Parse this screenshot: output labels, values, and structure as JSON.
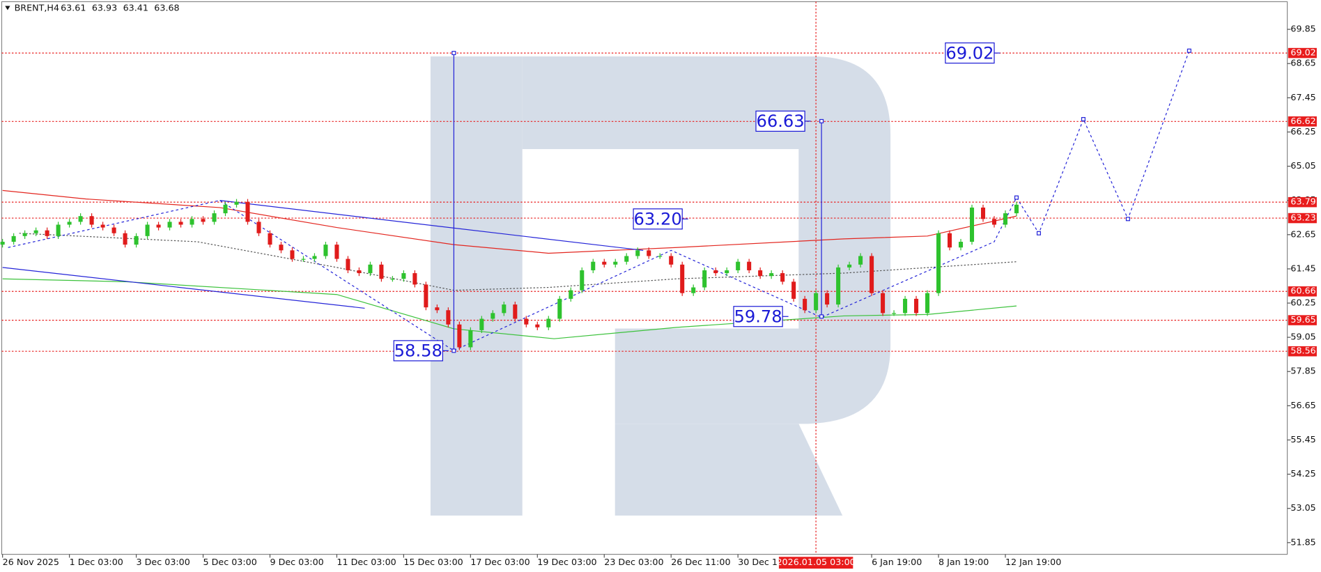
{
  "chart_data": {
    "type": "candlestick",
    "title": "BRENT,H4",
    "quote": [
      63.61,
      63.93,
      63.41,
      63.68
    ],
    "x": [
      0,
      2,
      4,
      6,
      8,
      10,
      12,
      14,
      16,
      18,
      20,
      22,
      24,
      26,
      28,
      30,
      32,
      34,
      36,
      38,
      40,
      42,
      44,
      46,
      48,
      50,
      52,
      54,
      56,
      58,
      60,
      62,
      64,
      66,
      68,
      70,
      72,
      74,
      76,
      78,
      80,
      82,
      84,
      86,
      88,
      90,
      92,
      94,
      96,
      98,
      100,
      102,
      104,
      106,
      108,
      110,
      112,
      114,
      116,
      118,
      120,
      122,
      124,
      126,
      128,
      130,
      132,
      134,
      136,
      138,
      140,
      142,
      144,
      146,
      148,
      150,
      152,
      154,
      156,
      158,
      160,
      162,
      164,
      166,
      168,
      170,
      172,
      174,
      176,
      178,
      180,
      182
    ],
    "open": [
      62.3,
      62.4,
      62.6,
      62.7,
      62.8,
      62.6,
      63.0,
      63.1,
      63.3,
      63.0,
      62.9,
      62.7,
      62.3,
      62.6,
      63.0,
      62.9,
      63.1,
      63.0,
      63.2,
      63.1,
      63.4,
      63.7,
      63.8,
      63.1,
      62.7,
      62.3,
      62.1,
      61.8,
      61.8,
      61.9,
      62.3,
      61.8,
      61.4,
      61.3,
      61.6,
      61.1,
      61.1,
      61.3,
      60.9,
      60.1,
      60.0,
      59.5,
      58.7,
      59.3,
      59.7,
      59.9,
      60.2,
      59.7,
      59.5,
      59.4,
      59.7,
      60.4,
      60.7,
      61.4,
      61.7,
      61.6,
      61.7,
      61.9,
      62.1,
      61.9,
      61.9,
      61.6,
      60.6,
      60.8,
      61.4,
      61.3,
      61.4,
      61.7,
      61.4,
      61.2,
      61.3,
      61.0,
      60.4,
      60.0,
      60.6,
      60.2,
      61.5,
      61.6,
      61.9,
      60.6,
      59.9,
      59.9,
      60.4,
      59.9,
      60.6,
      62.7,
      62.2,
      62.4,
      63.6,
      63.2,
      63.0,
      63.4
    ],
    "high": [
      62.5,
      62.7,
      62.8,
      62.9,
      62.9,
      63.1,
      63.2,
      63.4,
      63.4,
      63.1,
      63.0,
      62.8,
      62.7,
      63.1,
      63.1,
      63.2,
      63.2,
      63.3,
      63.3,
      63.5,
      63.8,
      63.9,
      63.9,
      63.2,
      62.8,
      62.4,
      62.2,
      61.9,
      62.0,
      62.4,
      62.4,
      61.9,
      61.5,
      61.7,
      61.7,
      61.2,
      61.4,
      61.4,
      61.0,
      60.2,
      60.1,
      59.6,
      59.4,
      59.8,
      60.0,
      60.3,
      60.3,
      59.8,
      59.6,
      59.8,
      60.5,
      60.8,
      61.5,
      61.8,
      61.8,
      61.8,
      62.0,
      62.2,
      62.2,
      62.0,
      62.0,
      61.7,
      60.9,
      61.5,
      61.5,
      61.5,
      61.8,
      61.8,
      61.5,
      61.4,
      61.4,
      61.1,
      60.5,
      60.7,
      60.7,
      61.6,
      61.7,
      62.0,
      62.0,
      60.7,
      60.0,
      60.5,
      60.5,
      60.7,
      62.8,
      62.8,
      62.5,
      63.7,
      63.7,
      63.3,
      63.5,
      63.8
    ],
    "low": [
      62.2,
      62.3,
      62.5,
      62.6,
      62.5,
      62.5,
      62.9,
      63.0,
      62.9,
      62.8,
      62.6,
      62.2,
      62.2,
      62.5,
      62.8,
      62.8,
      62.9,
      62.9,
      63.0,
      63.0,
      63.3,
      63.6,
      63.0,
      62.6,
      62.2,
      62.0,
      61.7,
      61.7,
      61.7,
      61.8,
      61.7,
      61.3,
      61.2,
      61.2,
      61.0,
      61.0,
      61.0,
      60.8,
      60.0,
      59.9,
      59.4,
      58.6,
      58.6,
      59.2,
      59.6,
      59.8,
      59.6,
      59.4,
      59.3,
      59.3,
      59.6,
      60.3,
      60.6,
      61.3,
      61.5,
      61.5,
      61.6,
      61.8,
      61.8,
      61.8,
      61.5,
      60.5,
      60.5,
      60.7,
      61.2,
      61.2,
      61.3,
      61.3,
      61.1,
      61.1,
      60.9,
      60.3,
      59.9,
      59.9,
      60.1,
      60.1,
      61.4,
      61.5,
      60.5,
      59.8,
      59.8,
      59.8,
      59.8,
      59.8,
      60.5,
      62.1,
      62.1,
      62.3,
      63.1,
      62.9,
      62.9,
      63.3
    ],
    "close": [
      62.4,
      62.6,
      62.7,
      62.8,
      62.6,
      63.0,
      63.1,
      63.3,
      63.0,
      62.9,
      62.7,
      62.3,
      62.6,
      63.0,
      62.9,
      63.1,
      63.0,
      63.2,
      63.1,
      63.4,
      63.7,
      63.8,
      63.1,
      62.7,
      62.3,
      62.1,
      61.8,
      61.8,
      61.9,
      62.3,
      61.8,
      61.4,
      61.3,
      61.6,
      61.1,
      61.1,
      61.3,
      60.9,
      60.1,
      60.0,
      59.5,
      58.7,
      59.3,
      59.7,
      59.9,
      60.2,
      59.7,
      59.5,
      59.4,
      59.7,
      60.4,
      60.7,
      61.4,
      61.7,
      61.6,
      61.7,
      61.9,
      62.1,
      61.9,
      61.9,
      61.6,
      60.6,
      60.8,
      61.4,
      61.3,
      61.4,
      61.7,
      61.4,
      61.2,
      61.3,
      61.0,
      60.4,
      60.0,
      60.6,
      60.2,
      61.5,
      61.6,
      61.9,
      60.6,
      59.9,
      59.9,
      60.4,
      59.9,
      60.6,
      62.7,
      62.2,
      62.4,
      63.6,
      63.2,
      63.0,
      63.4,
      63.7
    ],
    "up_color": "#2ec22e",
    "down_color": "#e01b1b",
    "xlim": [
      -0.15,
      230.6
    ],
    "ylim": [
      51.44,
      70.82
    ],
    "xticks": [
      {
        "value": 0,
        "label": "26 Nov 2025"
      },
      {
        "value": 12,
        "label": "1 Dec 03:00"
      },
      {
        "value": 24,
        "label": "3 Dec 03:00"
      },
      {
        "value": 36,
        "label": "5 Dec 03:00"
      },
      {
        "value": 48,
        "label": "9 Dec 03:00"
      },
      {
        "value": 60,
        "label": "11 Dec 03:00"
      },
      {
        "value": 72,
        "label": "15 Dec 03:00"
      },
      {
        "value": 84,
        "label": "17 Dec 03:00"
      },
      {
        "value": 96,
        "label": "19 Dec 03:00"
      },
      {
        "value": 108,
        "label": "23 Dec 03:00"
      },
      {
        "value": 120,
        "label": "26 Dec 11:00"
      },
      {
        "value": 132,
        "label": "30 Dec 11:00"
      },
      {
        "value": 156,
        "label": "6 Jan 19:00"
      },
      {
        "value": 168,
        "label": "8 Jan 19:00"
      },
      {
        "value": 180,
        "label": "12 Jan 19:00"
      }
    ],
    "yticks": [
      69.85,
      68.65,
      67.45,
      66.25,
      65.05,
      63.85,
      62.65,
      61.45,
      60.25,
      59.05,
      57.85,
      56.65,
      55.45,
      54.25,
      53.05,
      51.85
    ],
    "moving_averages": [
      {
        "color": "#e3261f",
        "dashed": false,
        "x": [
          0,
          15,
          39,
          60,
          81,
          98,
          121,
          151,
          166,
          182
        ],
        "values": [
          64.2,
          63.9,
          63.6,
          62.9,
          62.3,
          62.0,
          62.2,
          62.5,
          62.6,
          63.3
        ]
      },
      {
        "color": "#555555",
        "dashed": true,
        "x": [
          3,
          35,
          60,
          81,
          98,
          121,
          151,
          182
        ],
        "values": [
          62.7,
          62.4,
          61.5,
          60.7,
          60.8,
          61.1,
          61.3,
          61.7
        ]
      },
      {
        "color": "#3cc23c",
        "dashed": false,
        "x": [
          0,
          22,
          60,
          81,
          99,
          121,
          151,
          166,
          182
        ],
        "values": [
          61.1,
          61.0,
          60.55,
          59.35,
          59.0,
          59.4,
          59.8,
          59.85,
          60.15
        ]
      }
    ],
    "levels": {
      "color": "#e81c1c",
      "values": [
        69.02,
        66.62,
        63.79,
        63.23,
        60.66,
        59.65,
        58.56
      ]
    },
    "time_marker": {
      "x": 146,
      "label": "2026.01.05 03:00",
      "color": "#e81c1c"
    },
    "wave": {
      "color": "#2424d8",
      "x": [
        1,
        39,
        81,
        120,
        147,
        178,
        182
      ],
      "values": [
        62.2,
        63.85,
        58.58,
        62.1,
        59.75,
        62.4,
        63.95
      ]
    },
    "forecast": {
      "color": "#2424d8",
      "x": [
        182,
        186,
        194,
        202,
        213
      ],
      "values": [
        63.95,
        62.7,
        66.7,
        63.2,
        69.1
      ]
    },
    "trendlines": [
      {
        "x": [
          0,
          65
        ],
        "values": [
          61.5,
          60.07
        ]
      },
      {
        "x": [
          39,
          115
        ],
        "values": [
          63.85,
          62.1
        ]
      }
    ],
    "spans": [
      {
        "x": 81,
        "values": [
          69.02,
          58.58
        ]
      },
      {
        "x": 147,
        "values": [
          66.63,
          59.78
        ]
      }
    ],
    "annotations": [
      {
        "x": 178,
        "value": 69.02
      },
      {
        "x": 144,
        "value": 66.63
      },
      {
        "x": 122,
        "value": 63.2,
        "label": "63.20"
      },
      {
        "x": 140,
        "value": 59.78
      },
      {
        "x": 79,
        "value": 58.58
      }
    ]
  }
}
